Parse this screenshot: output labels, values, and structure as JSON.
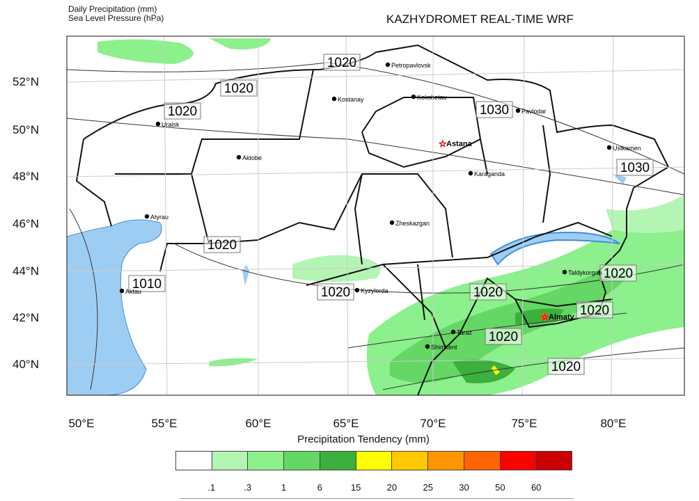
{
  "header": {
    "line1": "Daily Precipitation   (mm)",
    "line2": "Sea Level Pressure   (hPa)",
    "title": "KAZHYDROMET REAL-TIME WRF"
  },
  "axes": {
    "lat_labels": [
      "52°N",
      "50°N",
      "48°N",
      "46°N",
      "44°N",
      "42°N",
      "40°N"
    ],
    "lon_labels": [
      "50°E",
      "55°E",
      "60°E",
      "65°E",
      "70°E",
      "75°E",
      "80°E"
    ]
  },
  "cities": [
    {
      "name": "Petropavlovsk",
      "capital": false
    },
    {
      "name": "Kostanay",
      "capital": false
    },
    {
      "name": "Kokshetau",
      "capital": false
    },
    {
      "name": "Pavlodar",
      "capital": false
    },
    {
      "name": "Uralsk",
      "capital": false
    },
    {
      "name": "Aktobe",
      "capital": false
    },
    {
      "name": "Astana",
      "capital": true
    },
    {
      "name": "Ustkamen",
      "capital": false
    },
    {
      "name": "Karaganda",
      "capital": false
    },
    {
      "name": "Atyrau",
      "capital": false
    },
    {
      "name": "Zheskazgan",
      "capital": false
    },
    {
      "name": "Taldykorgan",
      "capital": false
    },
    {
      "name": "Aktau",
      "capital": false
    },
    {
      "name": "Kyzylorda",
      "capital": false
    },
    {
      "name": "Almaty",
      "capital": true
    },
    {
      "name": "Taraz",
      "capital": false
    },
    {
      "name": "Shimkent",
      "capital": false
    }
  ],
  "isobar_labels": [
    "1020",
    "1020",
    "1020",
    "1030",
    "1030",
    "1020",
    "1010",
    "1020",
    "1020",
    "1020",
    "1020",
    "1020",
    "1020"
  ],
  "colorbar": {
    "title": "Precipitation Tendency (mm)",
    "colors": [
      "#ffffff",
      "#b4f5b4",
      "#8cf08c",
      "#64d764",
      "#3caf3c",
      "#ffff00",
      "#ffc800",
      "#ff9600",
      "#ff6400",
      "#ff0000",
      "#c80000"
    ],
    "labels": [
      ".1",
      ".3",
      "1",
      "6",
      "15",
      "20",
      "25",
      "30",
      "50",
      "60"
    ]
  },
  "colors": {
    "water": "#9ecdf3",
    "precip_light": "#b4f5b4",
    "precip_mid": "#64d764",
    "precip_dark": "#3caf3c"
  }
}
